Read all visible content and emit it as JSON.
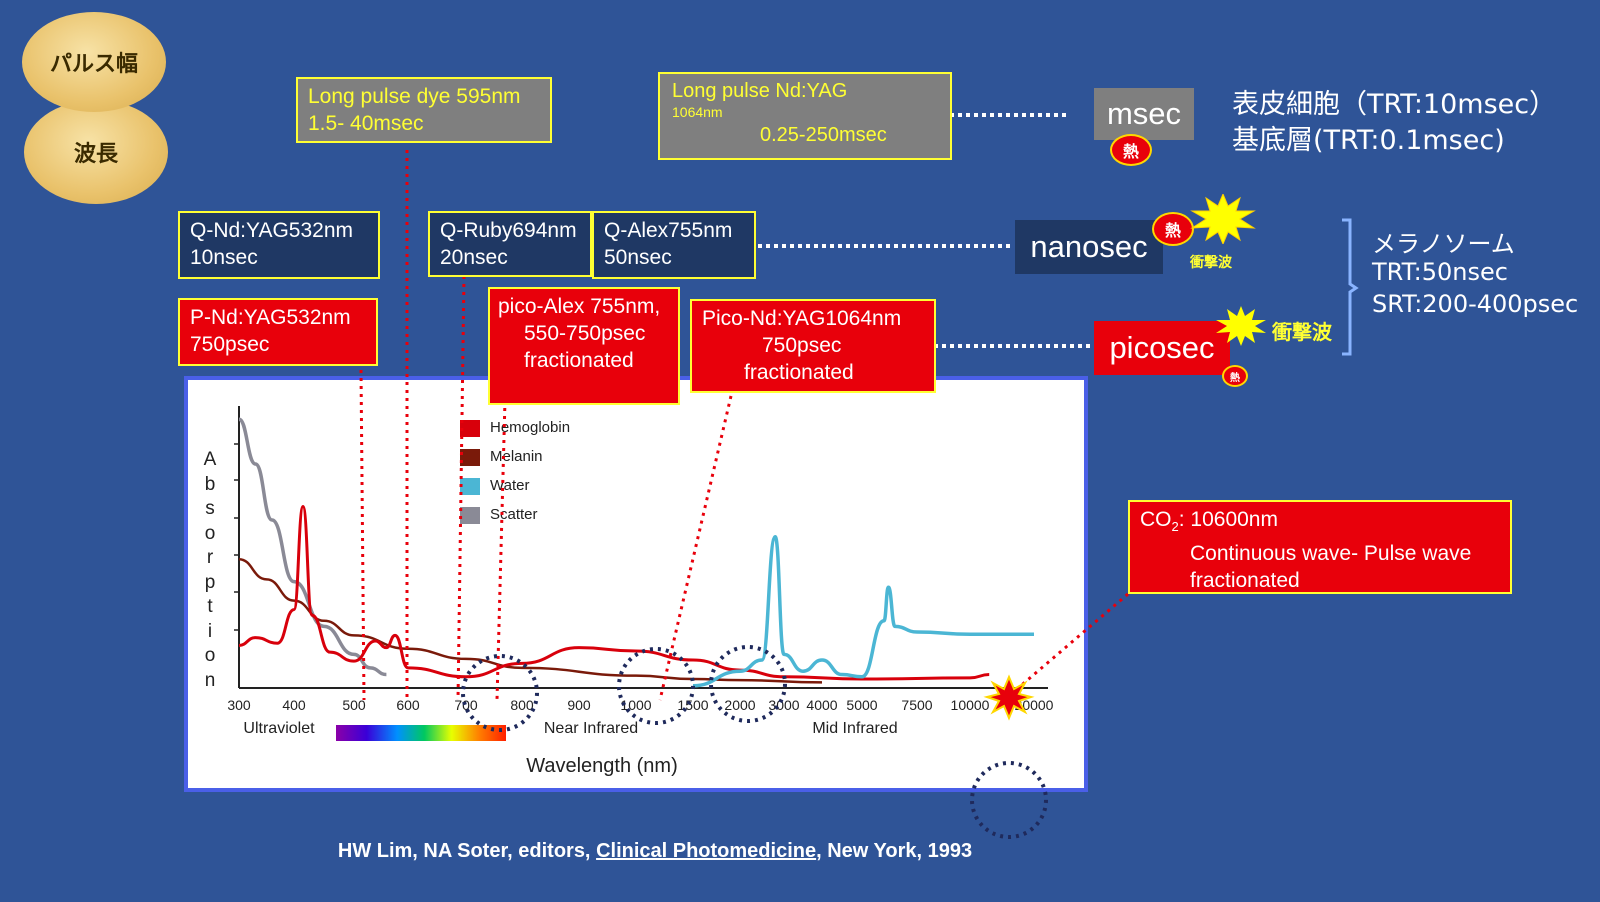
{
  "labels": {
    "pulse_width": "パルス幅",
    "wavelength": "波長"
  },
  "boxes": {
    "long_dye": {
      "line1": "Long pulse dye 595nm",
      "line2": "1.5- 40msec"
    },
    "long_ndyag": {
      "line1": "Long pulse Nd:YAG",
      "line2": "1064nm",
      "line3": "0.25-250msec"
    },
    "q_ndyag": {
      "line1": "Q-Nd:YAG532nm",
      "line2": "10nsec"
    },
    "q_ruby": {
      "line1": "Q-Ruby694nm",
      "line2": "20nsec"
    },
    "q_alex": {
      "line1": "Q-Alex755nm",
      "line2": "50nsec"
    },
    "p_ndyag": {
      "line1": "P-Nd:YAG532nm",
      "line2": "750psec"
    },
    "pico_alex": {
      "line1": "pico-Alex 755nm,",
      "line2": "550-750psec",
      "line3": "fractionated"
    },
    "pico_ndyag": {
      "line1": "Pico-Nd:YAG1064nm",
      "line2": "750psec",
      "line3": "fractionated"
    },
    "co2": {
      "line1a": "CO",
      "line1sub": "2",
      "line1b": ": 10600nm",
      "line2": "Continuous wave- Pulse wave",
      "line3": "fractionated"
    }
  },
  "durations": {
    "msec": "msec",
    "nanosec": "nanosec",
    "picosec": "picosec"
  },
  "heat_label": "熱",
  "shock_label": "衝撃波",
  "right_notes": {
    "epidermis": "表皮細胞（TRT:10msec）",
    "basal": "基底層(TRT:0.1msec)",
    "melanosome": "メラノソーム",
    "trt": "TRT:50nsec",
    "srt": "SRT:200-400psec"
  },
  "citation": {
    "prefix": "HW Lim, NA Soter, editors, ",
    "book": "Clinical Photomedicine",
    "suffix": ", New York, 1993"
  },
  "colors": {
    "background": "#2f5497",
    "hemoglobin": "#d8000b",
    "melanin": "#7a1a0a",
    "water": "#4bb6d4",
    "scatter": "#8a8a96",
    "box_border": "#ffff33"
  },
  "chart_data": {
    "type": "line",
    "xlabel": "Wavelength (nm)",
    "ylabel": "Absorption",
    "x_ticks": [
      "300",
      "400",
      "500",
      "600",
      "700",
      "800",
      "900",
      "1000",
      "1500",
      "2000",
      "3000",
      "4000",
      "5000",
      "7500",
      "10000",
      "20000"
    ],
    "regions": [
      "Ultraviolet",
      "Near Infrared",
      "Mid Infrared"
    ],
    "legend": [
      "Hemoglobin",
      "Melanin",
      "Water",
      "Scatter"
    ],
    "series": [
      {
        "name": "Hemoglobin",
        "points": [
          [
            300,
            0.38
          ],
          [
            330,
            0.45
          ],
          [
            370,
            0.4
          ],
          [
            400,
            0.7
          ],
          [
            415,
            1.62
          ],
          [
            430,
            0.65
          ],
          [
            460,
            0.32
          ],
          [
            500,
            0.24
          ],
          [
            540,
            0.42
          ],
          [
            560,
            0.36
          ],
          [
            576,
            0.47
          ],
          [
            600,
            0.18
          ],
          [
            700,
            0.1
          ],
          [
            800,
            0.22
          ],
          [
            900,
            0.36
          ],
          [
            1000,
            0.33
          ],
          [
            1500,
            0.25
          ],
          [
            2000,
            0.16
          ],
          [
            3000,
            0.1
          ],
          [
            5000,
            0.08
          ],
          [
            10000,
            0.09
          ],
          [
            13000,
            0.12
          ]
        ]
      },
      {
        "name": "Melanin",
        "points": [
          [
            300,
            1.15
          ],
          [
            350,
            0.97
          ],
          [
            400,
            0.78
          ],
          [
            450,
            0.6
          ],
          [
            500,
            0.47
          ],
          [
            600,
            0.35
          ],
          [
            700,
            0.26
          ],
          [
            800,
            0.18
          ],
          [
            1000,
            0.11
          ],
          [
            1500,
            0.08
          ],
          [
            2000,
            0.07
          ],
          [
            4000,
            0.05
          ]
        ]
      },
      {
        "name": "Water",
        "points": [
          [
            1500,
            0.02
          ],
          [
            2000,
            0.15
          ],
          [
            2500,
            0.25
          ],
          [
            2800,
            1.35
          ],
          [
            3000,
            0.3
          ],
          [
            3500,
            0.15
          ],
          [
            4000,
            0.25
          ],
          [
            4500,
            0.12
          ],
          [
            5000,
            0.1
          ],
          [
            6000,
            0.6
          ],
          [
            6200,
            0.9
          ],
          [
            6500,
            0.55
          ],
          [
            7500,
            0.5
          ],
          [
            10000,
            0.48
          ],
          [
            20000,
            0.48
          ]
        ]
      },
      {
        "name": "Scatter",
        "points": [
          [
            300,
            2.4
          ],
          [
            330,
            2.0
          ],
          [
            360,
            1.5
          ],
          [
            400,
            0.95
          ],
          [
            450,
            0.55
          ],
          [
            500,
            0.3
          ],
          [
            530,
            0.18
          ],
          [
            560,
            0.12
          ]
        ]
      }
    ]
  }
}
